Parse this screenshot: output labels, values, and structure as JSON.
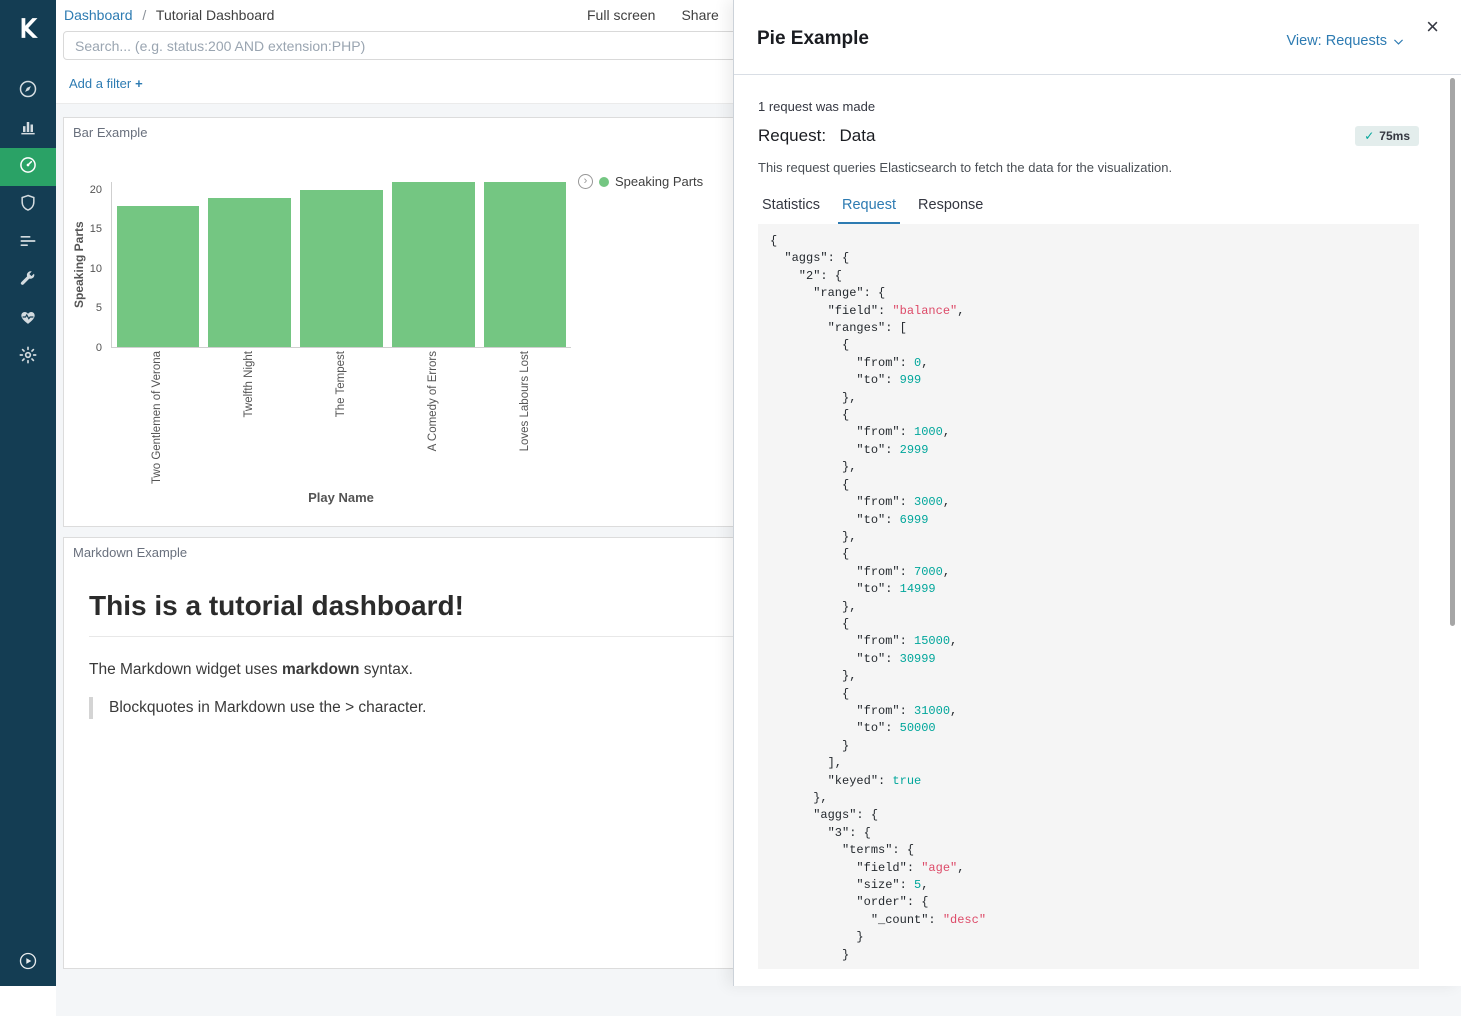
{
  "header": {
    "breadcrumb": {
      "root": "Dashboard",
      "separator": "/",
      "current": "Tutorial Dashboard"
    },
    "actions": [
      {
        "label": "Full screen"
      },
      {
        "label": "Share"
      }
    ]
  },
  "search": {
    "placeholder": "Search... (e.g. status:200 AND extension:PHP)",
    "value": ""
  },
  "filter_bar": {
    "add_filter": "Add a filter",
    "plus_icon": "+"
  },
  "sidebar": {
    "items": [
      {
        "name": "discover",
        "icon": "compass-icon",
        "active": false
      },
      {
        "name": "visualize",
        "icon": "bar-chart-icon",
        "active": false
      },
      {
        "name": "dashboard",
        "icon": "gauge-icon",
        "active": true
      },
      {
        "name": "graph",
        "icon": "shield-icon",
        "active": false
      },
      {
        "name": "timelion",
        "icon": "list-lines-icon",
        "active": false
      },
      {
        "name": "dev-tools",
        "icon": "wrench-icon",
        "active": false
      },
      {
        "name": "monitoring",
        "icon": "heartbeat-icon",
        "active": false
      },
      {
        "name": "management",
        "icon": "gear-icon",
        "active": false
      }
    ],
    "collapse_icon": "play-circle-icon"
  },
  "panels": {
    "bar": {
      "title": "Bar Example",
      "legend_label": "Speaking Parts"
    },
    "markdown": {
      "title": "Markdown Example",
      "heading": "This is a tutorial dashboard!",
      "paragraph_before": "The Markdown widget uses ",
      "paragraph_bold": "markdown",
      "paragraph_after": " syntax.",
      "blockquote": "Blockquotes in Markdown use the > character."
    }
  },
  "chart_data": {
    "type": "bar",
    "title": "Bar Example",
    "categories": [
      "Two Gentlemen of Verona",
      "Twelfth Night",
      "The Tempest",
      "A Comedy of Errors",
      "Loves Labours Lost"
    ],
    "values": [
      18,
      19,
      20,
      21,
      21
    ],
    "xlabel": "Play Name",
    "ylabel": "Speaking Parts",
    "ylim": [
      0,
      21
    ],
    "yticks": [
      0,
      5,
      10,
      15,
      20
    ],
    "legend": [
      {
        "label": "Speaking Parts",
        "position": "right"
      }
    ],
    "grid": false,
    "bar_color": "#74c682"
  },
  "flyout": {
    "title": "Pie Example",
    "view_selector": "View: Requests",
    "close_icon": "×",
    "requests_summary": "1 request was made",
    "request_label": "Request:",
    "request_name": "Data",
    "duration_badge": "75ms",
    "duration_check_icon": "✓",
    "description": "This request queries Elasticsearch to fetch the data for the visualization.",
    "tabs": [
      {
        "label": "Statistics",
        "active": false
      },
      {
        "label": "Request",
        "active": true
      },
      {
        "label": "Response",
        "active": false
      }
    ],
    "code_lines": [
      "{",
      "  \"aggs\": {",
      "    \"2\": {",
      "      \"range\": {",
      "        \"field\": \"balance\",",
      "        \"ranges\": [",
      "          {",
      "            \"from\": 0,",
      "            \"to\": 999",
      "          },",
      "          {",
      "            \"from\": 1000,",
      "            \"to\": 2999",
      "          },",
      "          {",
      "            \"from\": 3000,",
      "            \"to\": 6999",
      "          },",
      "          {",
      "            \"from\": 7000,",
      "            \"to\": 14999",
      "          },",
      "          {",
      "            \"from\": 15000,",
      "            \"to\": 30999",
      "          },",
      "          {",
      "            \"from\": 31000,",
      "            \"to\": 50000",
      "          }",
      "        ],",
      "        \"keyed\": true",
      "      },",
      "      \"aggs\": {",
      "        \"3\": {",
      "          \"terms\": {",
      "            \"field\": \"age\",",
      "            \"size\": 5,",
      "            \"order\": {",
      "              \"_count\": \"desc\"",
      "            }",
      "          }"
    ]
  },
  "colors": {
    "link": "#2d7bb2",
    "active_nav": "#2aa266",
    "bar": "#74c682",
    "code_string": "#dd4a68",
    "code_number": "#00a69b",
    "badge_check": "#00a69b"
  }
}
